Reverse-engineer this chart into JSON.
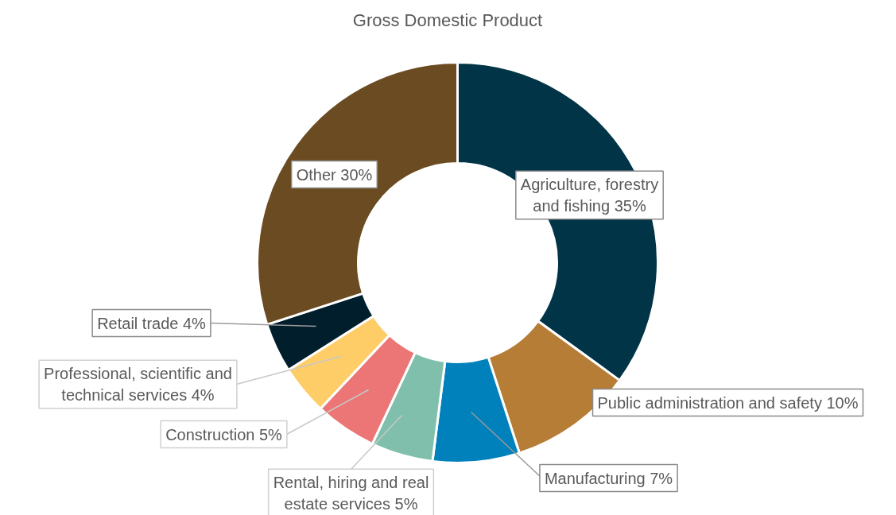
{
  "chart_data": {
    "type": "donut",
    "title": "Gross Domestic Product",
    "categories": [
      "Agriculture, forestry and fishing",
      "Public administration and safety",
      "Manufacturing",
      "Rental, hiring and real estate services",
      "Construction",
      "Professional, scientific and technical services",
      "Retail trade",
      "Other"
    ],
    "values": [
      35,
      10,
      7,
      5,
      5,
      4,
      4,
      30
    ],
    "value_labels": [
      "35%",
      "10%",
      "7%",
      "5%",
      "5%",
      "4%",
      "4%",
      "30%"
    ],
    "colors": [
      "#003446",
      "#b67d37",
      "#0081bb",
      "#7fbfab",
      "#ec7676",
      "#ffcd67",
      "#001e2b",
      "#6b4b21"
    ]
  }
}
